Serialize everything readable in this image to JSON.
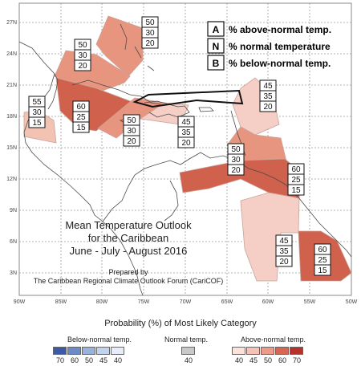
{
  "map": {
    "title_lines": [
      "Mean Temperature Outlook",
      "for the Caribbean",
      "June - July - August 2016"
    ],
    "prepared_lines": [
      "Prepared by",
      "The Caribbean Regional Climate Outlook Forum (CariCOF)"
    ],
    "lat_labels": [
      "27N",
      "24N",
      "21N",
      "18N",
      "15N",
      "12N",
      "9N",
      "6N",
      "3N"
    ],
    "lon_labels": [
      "90W",
      "85W",
      "80W",
      "75W",
      "70W",
      "65W",
      "60W",
      "55W",
      "50W"
    ],
    "key": [
      {
        "letter": "A",
        "text": "% above-normal temp."
      },
      {
        "letter": "N",
        "text": "% normal temperature"
      },
      {
        "letter": "B",
        "text": "% below-normal temp."
      }
    ],
    "regions": [
      {
        "name": "belize-yucatan",
        "values": [
          "55",
          "30",
          "15"
        ],
        "fill": "#f2c3b2"
      },
      {
        "name": "bahamas",
        "values": [
          "50",
          "30",
          "20"
        ],
        "fill": "#e89580"
      },
      {
        "name": "turks-caicos",
        "values": [
          "50",
          "30",
          "20"
        ],
        "fill": "#e89580"
      },
      {
        "name": "cuba-cayman",
        "values": [
          "60",
          "25",
          "15"
        ],
        "fill": "#d0614d"
      },
      {
        "name": "jamaica-haiti",
        "values": [
          "50",
          "30",
          "20"
        ],
        "fill": "#e89580"
      },
      {
        "name": "puerto-rico-leewards",
        "values": [
          "45",
          "35",
          "20"
        ],
        "fill": "#f5cfc5"
      },
      {
        "name": "hispaniola-south",
        "values": [
          "45",
          "35",
          "20"
        ],
        "fill": "#f5cfc5"
      },
      {
        "name": "lesser-antilles",
        "values": [
          "50",
          "30",
          "20"
        ],
        "fill": "#e89580"
      },
      {
        "name": "venezuela-coast",
        "values": [
          "60",
          "25",
          "15"
        ],
        "fill": "#d0614d"
      },
      {
        "name": "guyana-suriname-inland",
        "values": [
          "45",
          "35",
          "20"
        ],
        "fill": "#f5cfc5"
      },
      {
        "name": "french-guiana",
        "values": [
          "60",
          "25",
          "15"
        ],
        "fill": "#d0614d"
      }
    ]
  },
  "legend": {
    "caption": "Probability (%) of Most Likely Category",
    "below": {
      "title": "Below-normal temp.",
      "ticks": [
        "70",
        "60",
        "50",
        "45",
        "40"
      ],
      "colors": [
        "#3b5aa8",
        "#6c8cc8",
        "#98b2dc",
        "#c3d2ec",
        "#e6edf8"
      ]
    },
    "normal": {
      "title": "Normal temp.",
      "ticks": [
        "40"
      ],
      "colors": [
        "#c8c8c8"
      ]
    },
    "above": {
      "title": "Above-normal temp.",
      "ticks": [
        "40",
        "45",
        "50",
        "60",
        "70"
      ],
      "colors": [
        "#fbe2dc",
        "#f5c3b6",
        "#eb9b88",
        "#d76552",
        "#b8312a"
      ]
    }
  }
}
